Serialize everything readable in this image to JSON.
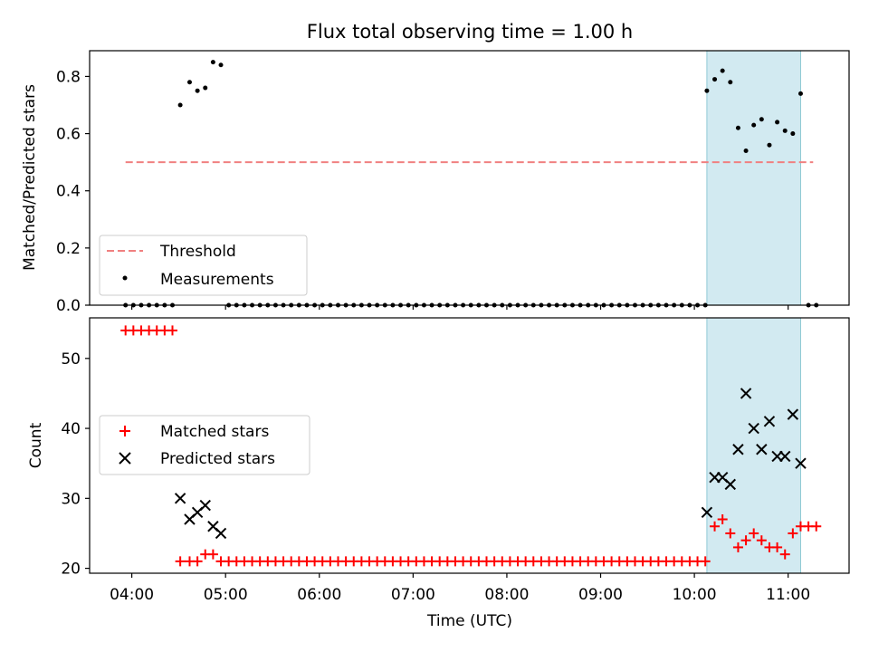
{
  "figure_title": "Flux total observing time = 1.00 h",
  "chart_data": [
    {
      "type": "scatter",
      "panel": "top",
      "ylabel": "Matched/Predicted stars",
      "ylim": [
        0,
        0.89
      ],
      "yticks": [
        0.0,
        0.2,
        0.4,
        0.6,
        0.8
      ],
      "ytick_labels": [
        "0.0",
        "0.2",
        "0.4",
        "0.6",
        "0.8"
      ],
      "highlight_span": [
        "10:08",
        "11:08"
      ],
      "highlight_color": "#add8e6",
      "legend": {
        "placement": "lower-left"
      },
      "threshold": {
        "name": "Threshold",
        "value": 0.5,
        "x_start": "03:56",
        "x_end": "11:16",
        "color": "#f08080",
        "style": "dashed"
      },
      "series": [
        {
          "name": "Measurements",
          "marker": "dot",
          "color": "#000000",
          "points": [
            [
              "03:56",
              0
            ],
            [
              "04:01",
              0
            ],
            [
              "04:06",
              0
            ],
            [
              "04:11",
              0
            ],
            [
              "04:16",
              0
            ],
            [
              "04:21",
              0
            ],
            [
              "04:26",
              0
            ],
            [
              "04:31",
              0.7
            ],
            [
              "04:37",
              0.78
            ],
            [
              "04:42",
              0.75
            ],
            [
              "04:47",
              0.76
            ],
            [
              "04:52",
              0.85
            ],
            [
              "04:57",
              0.84
            ],
            [
              "05:02",
              0
            ],
            [
              "05:07",
              0
            ],
            [
              "05:12",
              0
            ],
            [
              "05:17",
              0
            ],
            [
              "05:22",
              0
            ],
            [
              "05:27",
              0
            ],
            [
              "05:32",
              0
            ],
            [
              "05:37",
              0
            ],
            [
              "05:42",
              0
            ],
            [
              "05:47",
              0
            ],
            [
              "05:52",
              0
            ],
            [
              "05:57",
              0
            ],
            [
              "06:02",
              0
            ],
            [
              "06:07",
              0
            ],
            [
              "06:12",
              0
            ],
            [
              "06:17",
              0
            ],
            [
              "06:22",
              0
            ],
            [
              "06:27",
              0
            ],
            [
              "06:32",
              0
            ],
            [
              "06:37",
              0
            ],
            [
              "06:42",
              0
            ],
            [
              "06:47",
              0
            ],
            [
              "06:52",
              0
            ],
            [
              "06:57",
              0
            ],
            [
              "07:02",
              0
            ],
            [
              "07:07",
              0
            ],
            [
              "07:12",
              0
            ],
            [
              "07:17",
              0
            ],
            [
              "07:22",
              0
            ],
            [
              "07:27",
              0
            ],
            [
              "07:32",
              0
            ],
            [
              "07:37",
              0
            ],
            [
              "07:42",
              0
            ],
            [
              "07:47",
              0
            ],
            [
              "07:52",
              0
            ],
            [
              "07:57",
              0
            ],
            [
              "08:02",
              0
            ],
            [
              "08:07",
              0
            ],
            [
              "08:12",
              0
            ],
            [
              "08:17",
              0
            ],
            [
              "08:22",
              0
            ],
            [
              "08:27",
              0
            ],
            [
              "08:32",
              0
            ],
            [
              "08:37",
              0
            ],
            [
              "08:42",
              0
            ],
            [
              "08:47",
              0
            ],
            [
              "08:52",
              0
            ],
            [
              "08:57",
              0
            ],
            [
              "09:02",
              0
            ],
            [
              "09:07",
              0
            ],
            [
              "09:12",
              0
            ],
            [
              "09:17",
              0
            ],
            [
              "09:22",
              0
            ],
            [
              "09:27",
              0
            ],
            [
              "09:32",
              0
            ],
            [
              "09:37",
              0
            ],
            [
              "09:42",
              0
            ],
            [
              "09:47",
              0
            ],
            [
              "09:52",
              0
            ],
            [
              "09:57",
              0
            ],
            [
              "10:02",
              0
            ],
            [
              "10:07",
              0
            ],
            [
              "10:08",
              0.75
            ],
            [
              "10:13",
              0.79
            ],
            [
              "10:18",
              0.82
            ],
            [
              "10:23",
              0.78
            ],
            [
              "10:28",
              0.62
            ],
            [
              "10:33",
              0.54
            ],
            [
              "10:38",
              0.63
            ],
            [
              "10:43",
              0.65
            ],
            [
              "10:48",
              0.56
            ],
            [
              "10:53",
              0.64
            ],
            [
              "10:58",
              0.61
            ],
            [
              "11:03",
              0.6
            ],
            [
              "11:08",
              0.74
            ],
            [
              "11:13",
              0
            ],
            [
              "11:18",
              0
            ]
          ]
        }
      ]
    },
    {
      "type": "scatter",
      "panel": "bottom",
      "ylabel": "Count",
      "xlabel": "Time (UTC)",
      "ylim": [
        19.3,
        55.8
      ],
      "yticks": [
        20,
        30,
        40,
        50
      ],
      "ytick_labels": [
        "20",
        "30",
        "40",
        "50"
      ],
      "xlim": [
        "03:33",
        "11:39"
      ],
      "xticks": [
        "04:00",
        "05:00",
        "06:00",
        "07:00",
        "08:00",
        "09:00",
        "10:00",
        "11:00"
      ],
      "xtick_labels": [
        "04:00",
        "05:00",
        "06:00",
        "07:00",
        "08:00",
        "09:00",
        "10:00",
        "11:00"
      ],
      "highlight_span": [
        "10:08",
        "11:08"
      ],
      "highlight_color": "#add8e6",
      "legend": {
        "placement": "center-left"
      },
      "series": [
        {
          "name": "Matched stars",
          "marker": "plus",
          "color": "#ff0000",
          "points": [
            [
              "03:56",
              54
            ],
            [
              "04:01",
              54
            ],
            [
              "04:06",
              54
            ],
            [
              "04:11",
              54
            ],
            [
              "04:16",
              54
            ],
            [
              "04:21",
              54
            ],
            [
              "04:26",
              54
            ],
            [
              "04:31",
              21
            ],
            [
              "04:37",
              21
            ],
            [
              "04:42",
              21
            ],
            [
              "04:47",
              22
            ],
            [
              "04:52",
              22
            ],
            [
              "04:57",
              21
            ],
            [
              "05:02",
              21
            ],
            [
              "05:07",
              21
            ],
            [
              "05:12",
              21
            ],
            [
              "05:17",
              21
            ],
            [
              "05:22",
              21
            ],
            [
              "05:27",
              21
            ],
            [
              "05:32",
              21
            ],
            [
              "05:37",
              21
            ],
            [
              "05:42",
              21
            ],
            [
              "05:47",
              21
            ],
            [
              "05:52",
              21
            ],
            [
              "05:57",
              21
            ],
            [
              "06:02",
              21
            ],
            [
              "06:07",
              21
            ],
            [
              "06:12",
              21
            ],
            [
              "06:17",
              21
            ],
            [
              "06:22",
              21
            ],
            [
              "06:27",
              21
            ],
            [
              "06:32",
              21
            ],
            [
              "06:37",
              21
            ],
            [
              "06:42",
              21
            ],
            [
              "06:47",
              21
            ],
            [
              "06:52",
              21
            ],
            [
              "06:57",
              21
            ],
            [
              "07:02",
              21
            ],
            [
              "07:07",
              21
            ],
            [
              "07:12",
              21
            ],
            [
              "07:17",
              21
            ],
            [
              "07:22",
              21
            ],
            [
              "07:27",
              21
            ],
            [
              "07:32",
              21
            ],
            [
              "07:37",
              21
            ],
            [
              "07:42",
              21
            ],
            [
              "07:47",
              21
            ],
            [
              "07:52",
              21
            ],
            [
              "07:57",
              21
            ],
            [
              "08:02",
              21
            ],
            [
              "08:07",
              21
            ],
            [
              "08:12",
              21
            ],
            [
              "08:17",
              21
            ],
            [
              "08:22",
              21
            ],
            [
              "08:27",
              21
            ],
            [
              "08:32",
              21
            ],
            [
              "08:37",
              21
            ],
            [
              "08:42",
              21
            ],
            [
              "08:47",
              21
            ],
            [
              "08:52",
              21
            ],
            [
              "08:57",
              21
            ],
            [
              "09:02",
              21
            ],
            [
              "09:07",
              21
            ],
            [
              "09:12",
              21
            ],
            [
              "09:17",
              21
            ],
            [
              "09:22",
              21
            ],
            [
              "09:27",
              21
            ],
            [
              "09:32",
              21
            ],
            [
              "09:37",
              21
            ],
            [
              "09:42",
              21
            ],
            [
              "09:47",
              21
            ],
            [
              "09:52",
              21
            ],
            [
              "09:57",
              21
            ],
            [
              "10:02",
              21
            ],
            [
              "10:07",
              21
            ],
            [
              "10:13",
              26
            ],
            [
              "10:18",
              27
            ],
            [
              "10:23",
              25
            ],
            [
              "10:28",
              23
            ],
            [
              "10:33",
              24
            ],
            [
              "10:38",
              25
            ],
            [
              "10:43",
              24
            ],
            [
              "10:48",
              23
            ],
            [
              "10:53",
              23
            ],
            [
              "10:58",
              22
            ],
            [
              "11:03",
              25
            ],
            [
              "11:08",
              26
            ],
            [
              "11:13",
              26
            ],
            [
              "11:18",
              26
            ]
          ]
        },
        {
          "name": "Predicted stars",
          "marker": "x",
          "color": "#000000",
          "points": [
            [
              "04:31",
              30
            ],
            [
              "04:37",
              27
            ],
            [
              "04:42",
              28
            ],
            [
              "04:47",
              29
            ],
            [
              "04:52",
              26
            ],
            [
              "04:57",
              25
            ],
            [
              "10:08",
              28
            ],
            [
              "10:13",
              33
            ],
            [
              "10:18",
              33
            ],
            [
              "10:23",
              32
            ],
            [
              "10:28",
              37
            ],
            [
              "10:33",
              45
            ],
            [
              "10:38",
              40
            ],
            [
              "10:43",
              37
            ],
            [
              "10:48",
              41
            ],
            [
              "10:53",
              36
            ],
            [
              "10:58",
              36
            ],
            [
              "11:03",
              42
            ],
            [
              "11:08",
              35
            ]
          ]
        }
      ]
    }
  ]
}
